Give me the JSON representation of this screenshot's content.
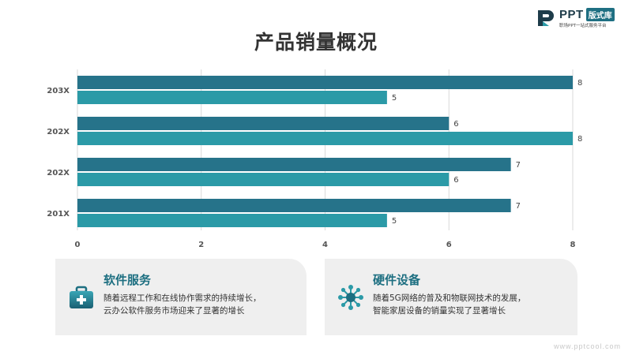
{
  "logo": {
    "name": "PPT",
    "badge": "版式库",
    "tagline": "职场PPT一站式服务平台"
  },
  "title": "产品销量概况",
  "chart_data": {
    "type": "bar",
    "orientation": "horizontal",
    "categories": [
      "203X",
      "202X",
      "202X",
      "201X"
    ],
    "series": [
      {
        "values": [
          8,
          6,
          7,
          7
        ],
        "color": "#26738a"
      },
      {
        "values": [
          5,
          8,
          6,
          5
        ],
        "color": "#2b9aa7"
      }
    ],
    "xlim": [
      0,
      8
    ],
    "xticks": [
      "0",
      "2",
      "4",
      "6",
      "8"
    ],
    "grid": true,
    "data_labels": true,
    "legend": "none"
  },
  "cards": [
    {
      "title": "软件服务",
      "icon": "medical-kit-icon",
      "lines": [
        "随着远程工作和在线协作需求的持续增长，",
        "云办公软件服务市场迎来了显著的增长"
      ]
    },
    {
      "title": "硬件设备",
      "icon": "network-hub-icon",
      "lines": [
        "随着5G网络的普及和物联网技术的发展，",
        "智能家居设备的销量实现了显著增长"
      ]
    }
  ],
  "footer": "www.pptcool.com"
}
